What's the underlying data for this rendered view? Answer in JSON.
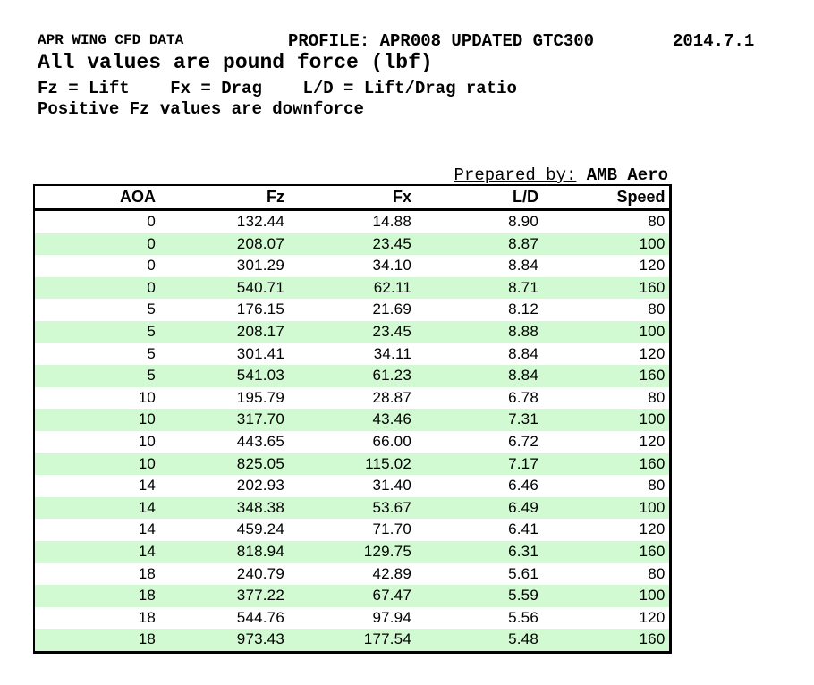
{
  "header": {
    "title": "APR WING CFD DATA",
    "profile": "PROFILE: APR008 UPDATED GTC300",
    "date": "2014.7.1",
    "subtitle": "All values are pound force (lbf)",
    "legend": "Fz = Lift    Fx = Drag    L/D = Lift/Drag ratio",
    "note": "Positive Fz values are downforce"
  },
  "prepared_by": {
    "label": "Prepared by:",
    "value": "AMB Aero"
  },
  "table": {
    "columns": [
      "AOA",
      "Fz",
      "Fx",
      "L/D",
      "Speed"
    ],
    "column_keys": [
      "aoa",
      "fz",
      "fx",
      "ld",
      "speed"
    ],
    "rows": [
      [
        "0",
        "132.44",
        "14.88",
        "8.90",
        "80"
      ],
      [
        "0",
        "208.07",
        "23.45",
        "8.87",
        "100"
      ],
      [
        "0",
        "301.29",
        "34.10",
        "8.84",
        "120"
      ],
      [
        "0",
        "540.71",
        "62.11",
        "8.71",
        "160"
      ],
      [
        "5",
        "176.15",
        "21.69",
        "8.12",
        "80"
      ],
      [
        "5",
        "208.17",
        "23.45",
        "8.88",
        "100"
      ],
      [
        "5",
        "301.41",
        "34.11",
        "8.84",
        "120"
      ],
      [
        "5",
        "541.03",
        "61.23",
        "8.84",
        "160"
      ],
      [
        "10",
        "195.79",
        "28.87",
        "6.78",
        "80"
      ],
      [
        "10",
        "317.70",
        "43.46",
        "7.31",
        "100"
      ],
      [
        "10",
        "443.65",
        "66.00",
        "6.72",
        "120"
      ],
      [
        "10",
        "825.05",
        "115.02",
        "7.17",
        "160"
      ],
      [
        "14",
        "202.93",
        "31.40",
        "6.46",
        "80"
      ],
      [
        "14",
        "348.38",
        "53.67",
        "6.49",
        "100"
      ],
      [
        "14",
        "459.24",
        "71.70",
        "6.41",
        "120"
      ],
      [
        "14",
        "818.94",
        "129.75",
        "6.31",
        "160"
      ],
      [
        "18",
        "240.79",
        "42.89",
        "5.61",
        "80"
      ],
      [
        "18",
        "377.22",
        "67.47",
        "5.59",
        "100"
      ],
      [
        "18",
        "544.76",
        "97.94",
        "5.56",
        "120"
      ],
      [
        "18",
        "973.43",
        "177.54",
        "5.48",
        "160"
      ]
    ]
  },
  "colors": {
    "row_stripe_green": "#d2fad2",
    "table_border": "#000000",
    "text": "#000000",
    "background": "#ffffff"
  }
}
